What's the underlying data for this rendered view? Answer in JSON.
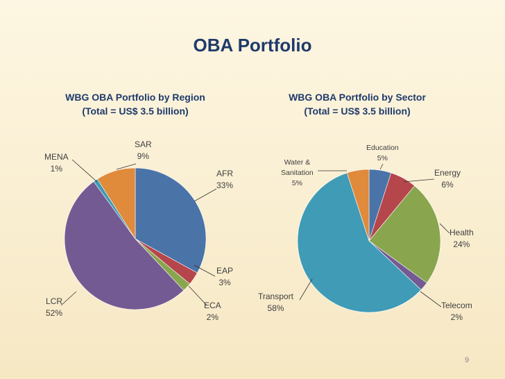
{
  "slide": {
    "title": "OBA Portfolio",
    "page_number": "9"
  },
  "chart_data": [
    {
      "type": "pie",
      "title_line1": "WBG OBA Portfolio by Region",
      "title_line2": "(Total = US$ 3.5 billion)",
      "slices": [
        {
          "label": "AFR",
          "value_label": "33%",
          "value": 33,
          "color": "#4a73a8"
        },
        {
          "label": "EAP",
          "value_label": "3%",
          "value": 3,
          "color": "#b5464b"
        },
        {
          "label": "ECA",
          "value_label": "2%",
          "value": 2,
          "color": "#89a54e"
        },
        {
          "label": "LCR",
          "value_label": "52%",
          "value": 52,
          "color": "#745a92"
        },
        {
          "label": "MENA",
          "value_label": "1%",
          "value": 1,
          "color": "#3f9bb6"
        },
        {
          "label": "SAR",
          "value_label": "9%",
          "value": 9,
          "color": "#e08a3c"
        }
      ]
    },
    {
      "type": "pie",
      "title_line1": "WBG OBA Portfolio by Sector",
      "title_line2": "(Total = US$ 3.5 billion)",
      "slices": [
        {
          "label": "Education",
          "value_label": "5%",
          "value": 5,
          "color": "#4a73a8"
        },
        {
          "label": "Energy",
          "value_label": "6%",
          "value": 6,
          "color": "#b5464b"
        },
        {
          "label": "Health",
          "value_label": "24%",
          "value": 24,
          "color": "#89a54e"
        },
        {
          "label": "Telecom",
          "value_label": "2%",
          "value": 2,
          "color": "#745a92"
        },
        {
          "label": "Transport",
          "value_label": "58%",
          "value": 58,
          "color": "#3f9bb6"
        },
        {
          "label": "Water & Sanitation",
          "label_line1": "Water &",
          "label_line2": "Sanitation",
          "value_label": "5%",
          "value": 5,
          "color": "#e08a3c"
        }
      ]
    }
  ]
}
